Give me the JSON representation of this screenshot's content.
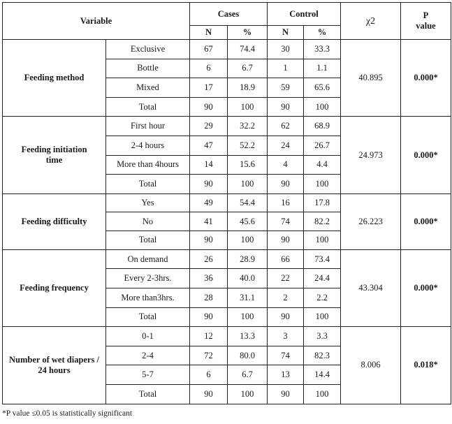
{
  "header": {
    "variable": "Variable",
    "cases": "Cases",
    "control": "Control",
    "n": "N",
    "pct": "%",
    "chi": "χ2",
    "p_line1": "P",
    "p_line2": "value"
  },
  "groups": [
    {
      "variable": "Feeding method",
      "chi2": "40.895",
      "p": "0.000*",
      "rows": [
        {
          "label": "Exclusive",
          "cn": "67",
          "cp": "74.4",
          "kn": "30",
          "kp": "33.3"
        },
        {
          "label": "Bottle",
          "cn": "6",
          "cp": "6.7",
          "kn": "1",
          "kp": "1.1"
        },
        {
          "label": "Mixed",
          "cn": "17",
          "cp": "18.9",
          "kn": "59",
          "kp": "65.6"
        },
        {
          "label": "Total",
          "cn": "90",
          "cp": "100",
          "kn": "90",
          "kp": "100"
        }
      ]
    },
    {
      "variable": "Feeding initiation time",
      "chi2": "24.973",
      "p": "0.000*",
      "rows": [
        {
          "label": "First hour",
          "cn": "29",
          "cp": "32.2",
          "kn": "62",
          "kp": "68.9"
        },
        {
          "label": "2-4 hours",
          "cn": "47",
          "cp": "52.2",
          "kn": "24",
          "kp": "26.7"
        },
        {
          "label": "More than 4hours",
          "cn": "14",
          "cp": "15.6",
          "kn": "4",
          "kp": "4.4"
        },
        {
          "label": "Total",
          "cn": "90",
          "cp": "100",
          "kn": "90",
          "kp": "100"
        }
      ]
    },
    {
      "variable": "Feeding difficulty",
      "chi2": "26.223",
      "p": "0.000*",
      "rows": [
        {
          "label": "Yes",
          "cn": "49",
          "cp": "54.4",
          "kn": "16",
          "kp": "17.8"
        },
        {
          "label": "No",
          "cn": "41",
          "cp": "45.6",
          "kn": "74",
          "kp": "82.2"
        },
        {
          "label": "Total",
          "cn": "90",
          "cp": "100",
          "kn": "90",
          "kp": "100"
        }
      ]
    },
    {
      "variable": "Feeding frequency",
      "chi2": "43.304",
      "p": "0.000*",
      "rows": [
        {
          "label": "On demand",
          "cn": "26",
          "cp": "28.9",
          "kn": "66",
          "kp": "73.4"
        },
        {
          "label": "Every 2-3hrs.",
          "cn": "36",
          "cp": "40.0",
          "kn": "22",
          "kp": "24.4"
        },
        {
          "label": "More than3hrs.",
          "cn": "28",
          "cp": "31.1",
          "kn": "2",
          "kp": "2.2"
        },
        {
          "label": "Total",
          "cn": "90",
          "cp": "100",
          "kn": "90",
          "kp": "100"
        }
      ]
    },
    {
      "variable": "Number of wet diapers / 24 hours",
      "chi2": "8.006",
      "p": "0.018*",
      "rows": [
        {
          "label": "0-1",
          "cn": "12",
          "cp": "13.3",
          "kn": "3",
          "kp": "3.3"
        },
        {
          "label": "2-4",
          "cn": "72",
          "cp": "80.0",
          "kn": "74",
          "kp": "82.3"
        },
        {
          "label": "5-7",
          "cn": "6",
          "cp": "6.7",
          "kn": "13",
          "kp": "14.4"
        },
        {
          "label": "Total",
          "cn": "90",
          "cp": "100",
          "kn": "90",
          "kp": "100"
        }
      ]
    }
  ],
  "footnote": "*P value ≤0.05 is statistically significant"
}
